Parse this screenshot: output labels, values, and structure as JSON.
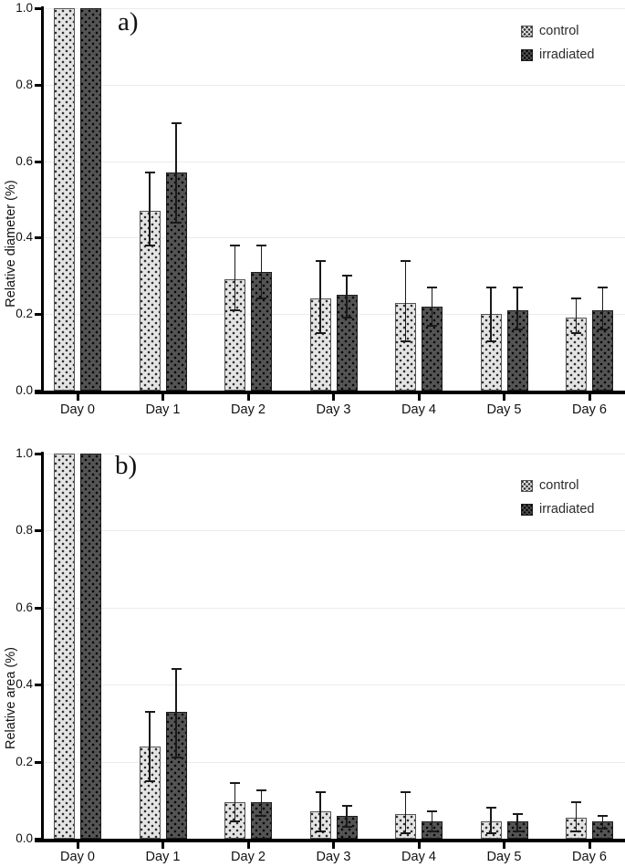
{
  "figure_colors": {
    "control_fill": "#e4e4e4",
    "control_dots": "#2e2e2e",
    "irradiated_fill": "#545454",
    "irradiated_dots": "#070707",
    "axis": "#000000",
    "gridline": "#ebebeb",
    "text": "#111111"
  },
  "chart_data": [
    {
      "panel_label": "a)",
      "type": "bar",
      "title": "",
      "xlabel": "",
      "ylabel": "Relative diameter (%)",
      "categories": [
        "Day 0",
        "Day 1",
        "Day 2",
        "Day 3",
        "Day 4",
        "Day 5",
        "Day 6"
      ],
      "ylim": [
        0.0,
        1.0
      ],
      "yticks": [
        1.0,
        0.8,
        0.6,
        0.4,
        0.2,
        0.0
      ],
      "grid": true,
      "legend_position": "top-right",
      "error_bars": true,
      "series": [
        {
          "name": "control",
          "values": [
            1.0,
            0.47,
            0.29,
            0.24,
            0.23,
            0.2,
            0.19
          ],
          "err_low": [
            null,
            0.38,
            0.21,
            0.15,
            0.13,
            0.13,
            0.15
          ],
          "err_high": [
            null,
            0.57,
            0.38,
            0.34,
            0.34,
            0.27,
            0.24
          ]
        },
        {
          "name": "irradiated",
          "values": [
            1.0,
            0.57,
            0.31,
            0.25,
            0.22,
            0.21,
            0.21
          ],
          "err_low": [
            null,
            0.44,
            0.24,
            0.19,
            0.17,
            0.16,
            0.16
          ],
          "err_high": [
            null,
            0.7,
            0.38,
            0.3,
            0.27,
            0.27,
            0.27
          ]
        }
      ]
    },
    {
      "panel_label": "b)",
      "type": "bar",
      "title": "",
      "xlabel": "",
      "ylabel": "Relative area (%)",
      "categories": [
        "Day 0",
        "Day 1",
        "Day 2",
        "Day 3",
        "Day 4",
        "Day 5",
        "Day 6"
      ],
      "ylim": [
        0.0,
        1.0
      ],
      "yticks": [
        1.0,
        0.8,
        0.6,
        0.4,
        0.2,
        0.0
      ],
      "grid": true,
      "legend_position": "top-right",
      "error_bars": true,
      "series": [
        {
          "name": "control",
          "values": [
            1.0,
            0.24,
            0.095,
            0.07,
            0.065,
            0.045,
            0.055
          ],
          "err_low": [
            null,
            0.15,
            0.045,
            0.02,
            0.015,
            0.015,
            0.02
          ],
          "err_high": [
            null,
            0.33,
            0.145,
            0.12,
            0.12,
            0.08,
            0.095
          ]
        },
        {
          "name": "irradiated",
          "values": [
            1.0,
            0.33,
            0.095,
            0.06,
            0.045,
            0.045,
            0.045
          ],
          "err_low": [
            null,
            0.21,
            0.06,
            0.03,
            0.02,
            0.02,
            0.025
          ],
          "err_high": [
            null,
            0.44,
            0.125,
            0.085,
            0.07,
            0.065,
            0.06
          ]
        }
      ]
    }
  ]
}
